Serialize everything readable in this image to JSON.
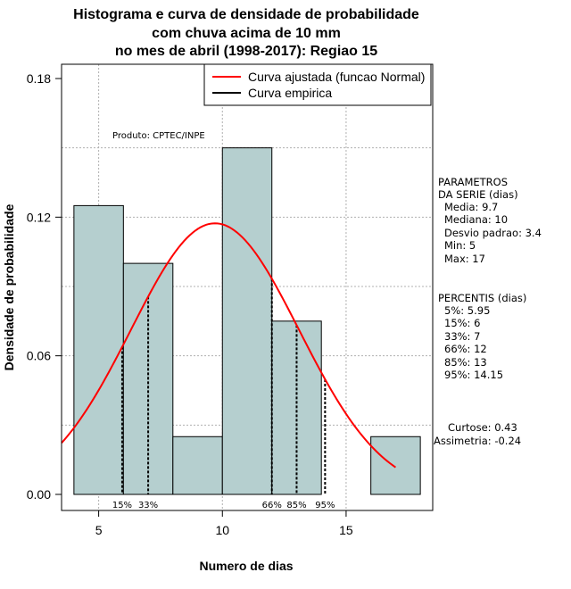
{
  "chart_data": {
    "type": "bar",
    "title": [
      "Histograma e curva de densidade de probabilidade",
      "com chuva acima de 10 mm",
      "no mes de abril (1998-2017): Regiao 15"
    ],
    "xlabel": "Numero de dias",
    "ylabel": "Densidade de probabilidade",
    "xlim": [
      3.5,
      18.5
    ],
    "ylim": [
      0,
      0.18
    ],
    "x_ticks": [
      5,
      10,
      15
    ],
    "x_tick_labels": [
      "5",
      "10",
      "15"
    ],
    "y_ticks": [
      0.0,
      0.06,
      0.12,
      0.18
    ],
    "y_tick_labels": [
      "0.00",
      "0.06",
      "0.12",
      "0.18"
    ],
    "grid": true,
    "bar_color": "#b5cfcf",
    "bins": [
      {
        "left": 4,
        "right": 6,
        "density": 0.125
      },
      {
        "left": 6,
        "right": 8,
        "density": 0.1
      },
      {
        "left": 8,
        "right": 10,
        "density": 0.025
      },
      {
        "left": 10,
        "right": 12,
        "density": 0.15
      },
      {
        "left": 12,
        "right": 14,
        "density": 0.075
      },
      {
        "left": 14,
        "right": 16,
        "density": 0.0
      },
      {
        "left": 16,
        "right": 18,
        "density": 0.025
      }
    ],
    "normal_curve": {
      "mean": 9.7,
      "sd": 3.4,
      "x_range": [
        3.5,
        17
      ],
      "color": "#ff0000"
    },
    "percentile_lines": [
      {
        "x": 5.95,
        "label": "15%"
      },
      {
        "x": 7,
        "label": "33%"
      },
      {
        "x": 12,
        "label": "66%"
      },
      {
        "x": 13,
        "label": "85%"
      },
      {
        "x": 14.15,
        "label": "95%"
      }
    ],
    "legend": {
      "position": "top-right",
      "entries": [
        {
          "label": "Curva ajustada (funcao Normal)",
          "color": "#ff0000"
        },
        {
          "label": "Curva empirica",
          "color": "#000000"
        }
      ]
    },
    "annotation": "Produto: CPTEC/INPE",
    "parametros": {
      "heading": [
        "PARAMETROS",
        "DA SERIE (dias)"
      ],
      "lines": [
        "Media: 9.7",
        "Mediana: 10",
        "Desvio padrao: 3.4",
        "Min: 5",
        "Max: 17"
      ]
    },
    "percentis": {
      "heading": "PERCENTIS (dias)",
      "lines": [
        "5%: 5.95",
        "15%: 6",
        "33%: 7",
        "66%: 12",
        "85%: 13",
        "95%: 14.15"
      ]
    },
    "shape": [
      "Curtose: 0.43",
      "Assimetria: -0.24"
    ]
  }
}
